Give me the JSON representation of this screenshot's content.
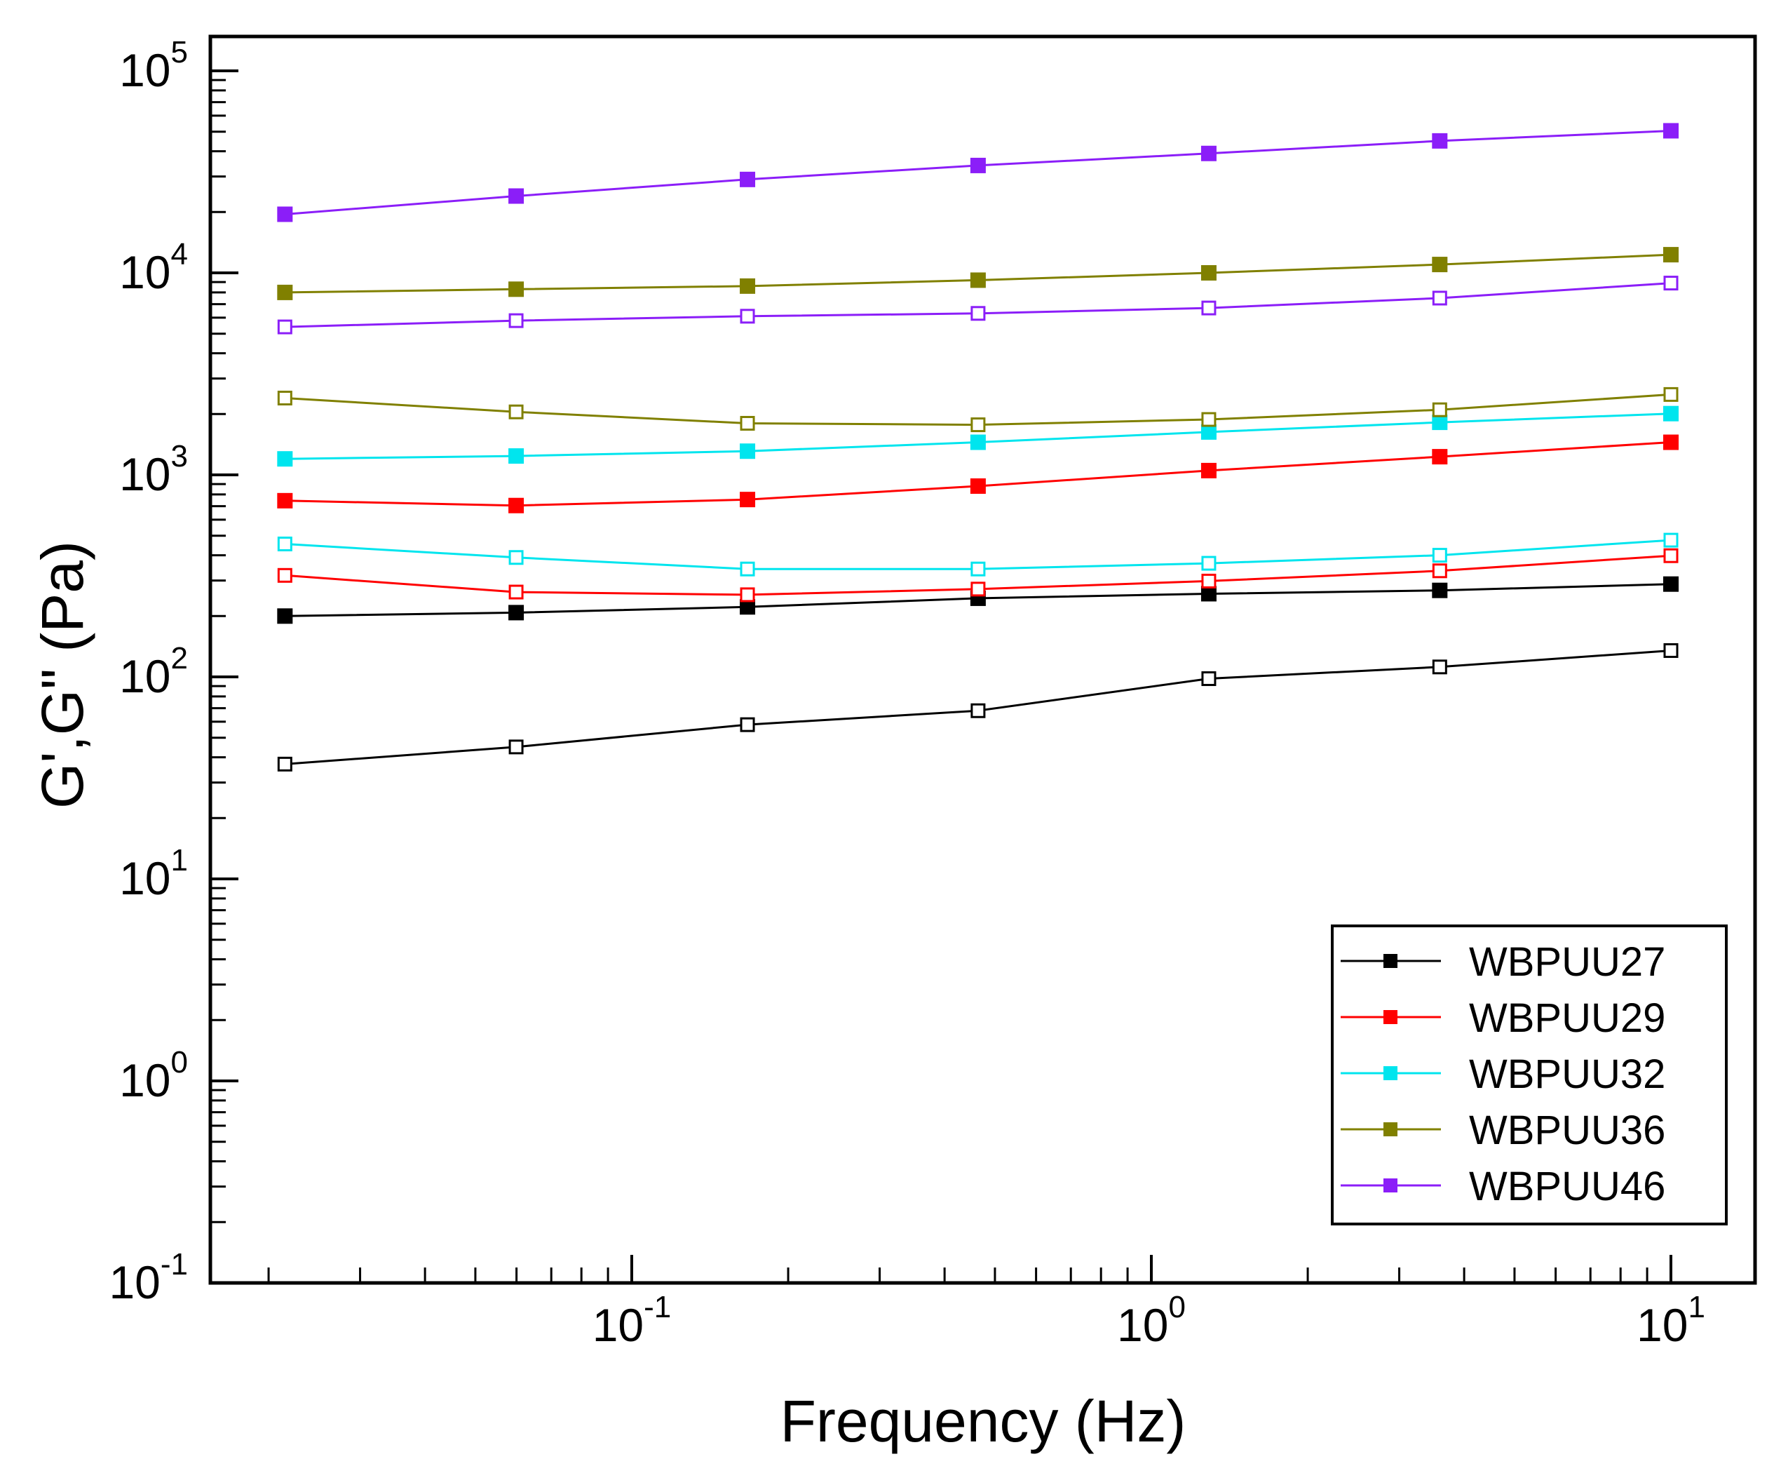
{
  "chart_data": {
    "type": "line",
    "x_scale": "log",
    "y_scale": "log",
    "xlabel": "Frequency (Hz)",
    "ylabel": "G',G\" (Pa)",
    "xlim": [
      0.015,
      15
    ],
    "ylim": [
      0.1,
      150000
    ],
    "x_ticks": [
      {
        "value": 0.1,
        "base": "10",
        "exp": "-1"
      },
      {
        "value": 1,
        "base": "10",
        "exp": "0"
      },
      {
        "value": 10,
        "base": "10",
        "exp": "1"
      }
    ],
    "y_ticks": [
      {
        "value": 0.1,
        "base": "10",
        "exp": "-1"
      },
      {
        "value": 1,
        "base": "10",
        "exp": "0"
      },
      {
        "value": 10,
        "base": "10",
        "exp": "1"
      },
      {
        "value": 100,
        "base": "10",
        "exp": "2"
      },
      {
        "value": 1000,
        "base": "10",
        "exp": "3"
      },
      {
        "value": 10000,
        "base": "10",
        "exp": "4"
      },
      {
        "value": 100000,
        "base": "10",
        "exp": "5"
      }
    ],
    "x": [
      0.0215,
      0.0599,
      0.167,
      0.464,
      1.29,
      3.59,
      10
    ],
    "series": [
      {
        "name": "WBPUU27",
        "color": "#000000",
        "marker": "filled-square",
        "modulus": "G'",
        "values": [
          200,
          208,
          222,
          245,
          258,
          268,
          288
        ]
      },
      {
        "name": "WBPUU27",
        "color": "#000000",
        "marker": "open-square",
        "modulus": "G\"",
        "values": [
          37,
          45,
          58,
          68,
          98,
          112,
          135
        ]
      },
      {
        "name": "WBPUU29",
        "color": "#ff0000",
        "marker": "filled-square",
        "modulus": "G'",
        "values": [
          745,
          705,
          755,
          880,
          1050,
          1230,
          1450
        ]
      },
      {
        "name": "WBPUU29",
        "color": "#ff0000",
        "marker": "open-square",
        "modulus": "G\"",
        "values": [
          318,
          263,
          255,
          272,
          298,
          335,
          398
        ]
      },
      {
        "name": "WBPUU32",
        "color": "#00e5ee",
        "marker": "filled-square",
        "modulus": "G'",
        "values": [
          1200,
          1240,
          1310,
          1450,
          1630,
          1820,
          2010
        ]
      },
      {
        "name": "WBPUU32",
        "color": "#00e5ee",
        "marker": "open-square",
        "modulus": "G\"",
        "values": [
          455,
          390,
          342,
          342,
          365,
          400,
          475
        ]
      },
      {
        "name": "WBPUU36",
        "color": "#808000",
        "marker": "filled-square",
        "modulus": "G'",
        "values": [
          8000,
          8300,
          8600,
          9200,
          10000,
          11000,
          12300
        ]
      },
      {
        "name": "WBPUU36",
        "color": "#808000",
        "marker": "open-square",
        "modulus": "G\"",
        "values": [
          2400,
          2050,
          1800,
          1770,
          1880,
          2100,
          2500
        ]
      },
      {
        "name": "WBPUU46",
        "color": "#8b1ef8",
        "marker": "filled-square",
        "modulus": "G'",
        "values": [
          19500,
          24000,
          29000,
          34000,
          39000,
          45000,
          50500
        ]
      },
      {
        "name": "WBPUU46",
        "color": "#8b1ef8",
        "marker": "open-square",
        "modulus": "G\"",
        "values": [
          5400,
          5800,
          6100,
          6300,
          6700,
          7500,
          8900
        ]
      }
    ],
    "legend": {
      "position": "bottom-right",
      "entries": [
        {
          "label": "WBPUU27",
          "color": "#000000"
        },
        {
          "label": "WBPUU29",
          "color": "#ff0000"
        },
        {
          "label": "WBPUU32",
          "color": "#00e5ee"
        },
        {
          "label": "WBPUU36",
          "color": "#808000"
        },
        {
          "label": "WBPUU46",
          "color": "#8b1ef8"
        }
      ]
    },
    "grid": false
  }
}
